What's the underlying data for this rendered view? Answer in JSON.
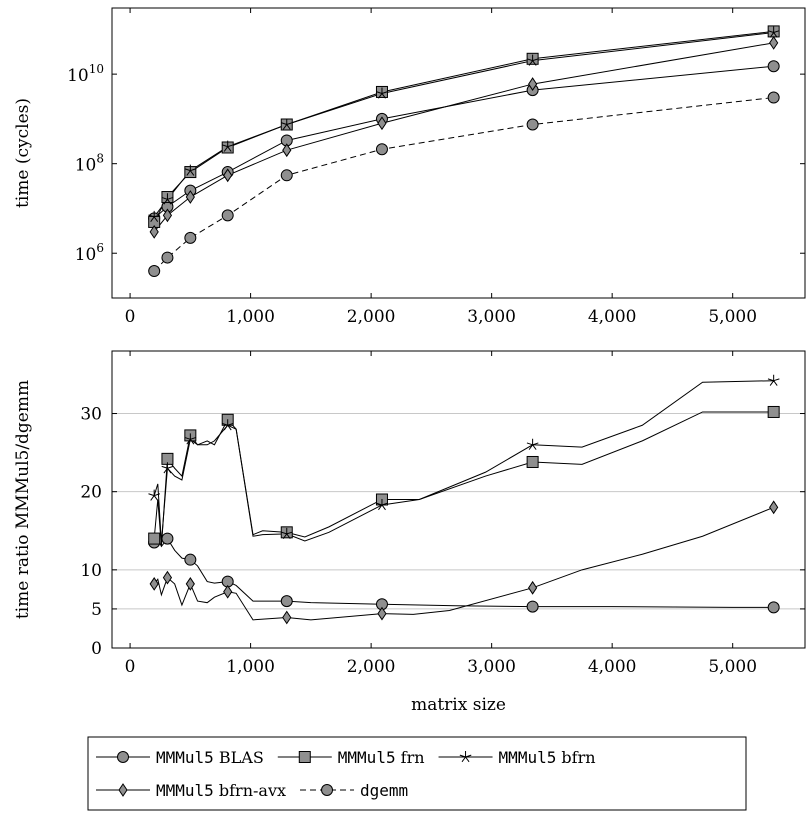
{
  "chart_data": [
    {
      "type": "line",
      "yscale": "log",
      "ylabel": "time (cycles)",
      "xlabel": "",
      "xlim": [
        -150,
        5600
      ],
      "ylim": [
        100000,
        300000000000
      ],
      "x_ticks": [
        0,
        1000,
        2000,
        3000,
        4000,
        5000
      ],
      "x_tick_labels": [
        "0",
        "1,000",
        "2,000",
        "3,000",
        "4,000",
        "5,000"
      ],
      "y_ticks": [
        1000000,
        100000000,
        10000000000
      ],
      "y_tick_labels": [
        {
          "base": "10",
          "exp": "6"
        },
        {
          "base": "10",
          "exp": "8"
        },
        {
          "base": "10",
          "exp": "10"
        }
      ],
      "grid": false,
      "series": [
        {
          "name": "MMMul5 BLAS",
          "marker": "circle",
          "dash": "solid",
          "x": [
            200,
            310,
            500,
            810,
            1300,
            2090,
            3340,
            5340
          ],
          "values": [
            6000000,
            11000000,
            25000000,
            65000000,
            330000000,
            1000000000,
            4400000000,
            15000000000
          ],
          "marked": [
            true,
            true,
            true,
            true,
            true,
            true,
            true,
            true
          ]
        },
        {
          "name": "MMMul5 frn",
          "marker": "square",
          "dash": "solid",
          "x": [
            200,
            310,
            500,
            810,
            1300,
            2090,
            3340,
            5340
          ],
          "values": [
            5000000,
            18000000,
            65000000,
            230000000,
            750000000,
            4000000000,
            22000000000,
            90000000000
          ],
          "marked": [
            true,
            true,
            true,
            true,
            true,
            true,
            true,
            true
          ]
        },
        {
          "name": "MMMul5 bfrn",
          "marker": "star",
          "dash": "solid",
          "x": [
            200,
            310,
            500,
            810,
            1300,
            2090,
            3340,
            5340
          ],
          "values": [
            6500000,
            16000000,
            70000000,
            240000000,
            750000000,
            3700000000,
            20000000000,
            85000000000
          ],
          "marked": [
            true,
            true,
            true,
            true,
            true,
            true,
            true,
            true
          ]
        },
        {
          "name": "MMMul5 bfrn-avx",
          "marker": "diamond",
          "dash": "solid",
          "x": [
            200,
            310,
            500,
            810,
            1300,
            2090,
            3340,
            5340
          ],
          "values": [
            3000000,
            7000000,
            18000000,
            55000000,
            200000000,
            800000000,
            6000000000,
            50000000000
          ],
          "marked": [
            true,
            true,
            true,
            true,
            true,
            true,
            true,
            true
          ]
        },
        {
          "name": "dgemm",
          "marker": "circle",
          "dash": "dashed",
          "x": [
            200,
            310,
            500,
            810,
            1300,
            2090,
            3340,
            5340
          ],
          "values": [
            400000,
            800000,
            2200000,
            7000000,
            55000000,
            210000000,
            750000000,
            3000000000
          ],
          "marked": [
            true,
            true,
            true,
            true,
            true,
            true,
            true,
            true
          ]
        }
      ]
    },
    {
      "type": "line",
      "yscale": "linear",
      "ylabel": "time ratio MMMul5/dgemm",
      "xlabel": "matrix size",
      "xlim": [
        -150,
        5600
      ],
      "ylim": [
        0,
        38
      ],
      "x_ticks": [
        0,
        1000,
        2000,
        3000,
        4000,
        5000
      ],
      "x_tick_labels": [
        "0",
        "1,000",
        "2,000",
        "3,000",
        "4,000",
        "5,000"
      ],
      "y_ticks": [
        0,
        5,
        10,
        20,
        30
      ],
      "y_tick_labels": [
        "0",
        "5",
        "10",
        "20",
        "30"
      ],
      "grid": true,
      "series": [
        {
          "name": "MMMul5 BLAS",
          "marker": "circle",
          "dash": "solid",
          "x": [
            200,
            230,
            260,
            310,
            370,
            430,
            500,
            560,
            640,
            700,
            810,
            880,
            1020,
            1300,
            1500,
            2090,
            2700,
            3340,
            4000,
            5000,
            5340
          ],
          "values": [
            13.5,
            14,
            13,
            14,
            12.5,
            11.5,
            11.3,
            10.5,
            8.5,
            8.3,
            8.5,
            8,
            6,
            6,
            5.8,
            5.6,
            5.4,
            5.3,
            5.3,
            5.2,
            5.2
          ],
          "marked": [
            true,
            false,
            false,
            true,
            false,
            false,
            true,
            false,
            false,
            false,
            true,
            false,
            false,
            true,
            false,
            true,
            false,
            true,
            false,
            false,
            true
          ]
        },
        {
          "name": "MMMul5 frn",
          "marker": "square",
          "dash": "solid",
          "x": [
            200,
            230,
            260,
            310,
            370,
            430,
            500,
            560,
            640,
            700,
            810,
            880,
            1020,
            1100,
            1300,
            1450,
            1650,
            2090,
            2400,
            2950,
            3340,
            3750,
            4250,
            4750,
            5340
          ],
          "values": [
            14,
            19,
            13,
            24.2,
            23,
            22,
            27.2,
            26,
            26.5,
            26,
            29.2,
            28,
            14.5,
            15,
            14.8,
            14.2,
            15.5,
            19,
            19,
            22,
            23.8,
            23.5,
            26.5,
            30.2,
            30.2
          ],
          "marked": [
            true,
            false,
            false,
            true,
            false,
            false,
            true,
            false,
            false,
            false,
            true,
            false,
            false,
            false,
            true,
            false,
            false,
            true,
            false,
            false,
            true,
            false,
            false,
            false,
            true
          ]
        },
        {
          "name": "MMMul5 bfrn",
          "marker": "star",
          "dash": "solid",
          "x": [
            200,
            230,
            260,
            310,
            370,
            430,
            500,
            560,
            640,
            700,
            810,
            880,
            1020,
            1100,
            1300,
            1450,
            1650,
            2090,
            2400,
            2950,
            3340,
            3750,
            4250,
            4750,
            5340
          ],
          "values": [
            19.5,
            21,
            13.5,
            23,
            22,
            21.5,
            26.7,
            26,
            26,
            26.5,
            28.5,
            28,
            14.3,
            14.5,
            14.6,
            13.7,
            14.8,
            18.3,
            19,
            22.5,
            26,
            25.7,
            28.5,
            34,
            34.2
          ],
          "marked": [
            true,
            false,
            false,
            true,
            false,
            false,
            true,
            false,
            false,
            false,
            true,
            false,
            false,
            false,
            true,
            false,
            false,
            true,
            false,
            false,
            true,
            false,
            false,
            false,
            true
          ]
        },
        {
          "name": "MMMul5 bfrn-avx",
          "marker": "diamond",
          "dash": "solid",
          "x": [
            200,
            230,
            260,
            310,
            370,
            430,
            500,
            560,
            640,
            700,
            810,
            880,
            1020,
            1300,
            1500,
            2090,
            2350,
            2650,
            3340,
            3750,
            4250,
            4750,
            5340
          ],
          "values": [
            8.2,
            8.8,
            6.8,
            9,
            8.2,
            5.5,
            8.2,
            6,
            5.8,
            6.5,
            7.2,
            7,
            3.6,
            3.9,
            3.6,
            4.4,
            4.3,
            4.8,
            7.7,
            10,
            12,
            14.3,
            18
          ],
          "marked": [
            true,
            false,
            false,
            true,
            false,
            false,
            true,
            false,
            false,
            false,
            true,
            false,
            false,
            true,
            false,
            true,
            false,
            false,
            true,
            false,
            false,
            false,
            true
          ]
        }
      ]
    }
  ],
  "legend": {
    "placement": "bottom-center",
    "entries": [
      {
        "series": "MMMul5 BLAS",
        "code": "MMMul5",
        "text": " BLAS"
      },
      {
        "series": "MMMul5 frn",
        "code": "MMMul5",
        "text": " frn"
      },
      {
        "series": "MMMul5 bfrn",
        "code": "MMMul5",
        "text": " bfrn"
      },
      {
        "series": "MMMul5 bfrn-avx",
        "code": "MMMul5",
        "text": " bfrn-avx"
      },
      {
        "series": "dgemm",
        "code": "dgemm",
        "text": ""
      }
    ]
  }
}
